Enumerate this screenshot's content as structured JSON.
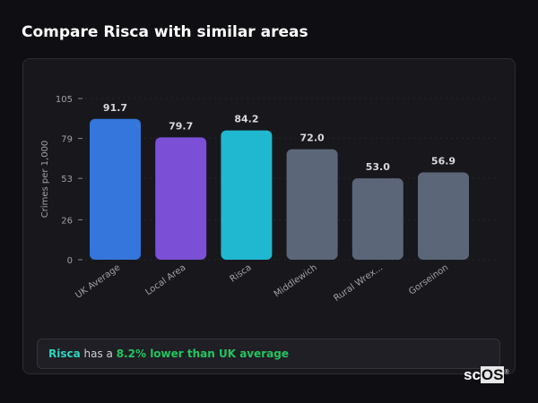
{
  "header": {
    "title": "Compare Risca with similar areas"
  },
  "chart_data": {
    "type": "bar",
    "categories": [
      "UK Average",
      "Local Area",
      "Risca",
      "Middlewich",
      "Rural Wrex...",
      "Gorseinon"
    ],
    "values": [
      91.7,
      79.7,
      84.2,
      72.0,
      53.0,
      56.9
    ],
    "value_labels": [
      "91.7",
      "79.7",
      "84.2",
      "72.0",
      "53.0",
      "56.9"
    ],
    "colors": [
      "#3476db",
      "#7b4fd6",
      "#1fb8d0",
      "#5b6779",
      "#5b6779",
      "#5b6779"
    ],
    "ylabel": "Crimes per 1,000",
    "xlabel": "",
    "ylim": [
      0,
      105
    ],
    "yticks": [
      0,
      26,
      53,
      79,
      105
    ],
    "grid": true
  },
  "summary": {
    "area": "Risca",
    "middle": " has a ",
    "highlight": "8.2% lower than UK average",
    "area_color": "#2dd4bf",
    "highlight_color": "#22c55e"
  },
  "logo": {
    "text_plain": "sc",
    "text_boxed": "OS",
    "mark": "®"
  }
}
